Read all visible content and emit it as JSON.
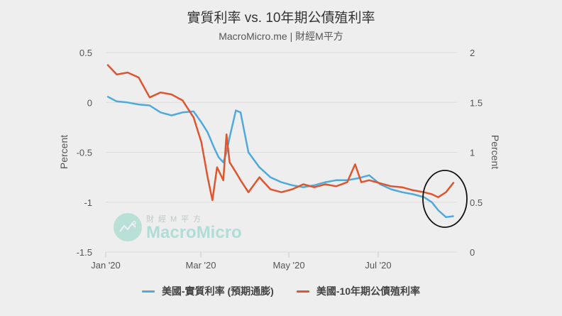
{
  "header": {
    "title": "實質利率 vs. 10年期公債殖利率",
    "subtitle": "MacroMicro.me | 財經M平方"
  },
  "watermark": {
    "top_text": "財經M平方",
    "main_text": "MacroMicro"
  },
  "legend": [
    {
      "label": "美國-實質利率 (預期通膨)",
      "color": "#4fa9db"
    },
    {
      "label": "美國-10年期公債殖利率",
      "color": "#e0552d"
    }
  ],
  "annotation": {
    "type": "ellipse",
    "description": "circle highlighting late-July divergence",
    "color": "#111111"
  },
  "chart_data": {
    "type": "line",
    "title": "實質利率 vs. 10年期公債殖利率",
    "subtitle": "MacroMicro.me | 財經M平方",
    "x_ticks": [
      "Jan '20",
      "Mar '20",
      "May '20",
      "Jul '20"
    ],
    "left_axis": {
      "label": "Percent",
      "ticks": [
        "0.5",
        "0",
        "-0.5",
        "-1",
        "-1.5"
      ],
      "range": [
        -1.5,
        0.5
      ]
    },
    "right_axis": {
      "label": "Percent",
      "ticks": [
        "2",
        "1.5",
        "1",
        "0.5",
        "0"
      ],
      "range": [
        0,
        2
      ]
    },
    "grid": true,
    "legend_position": "bottom",
    "series": [
      {
        "name": "美國-實質利率 (預期通膨)",
        "axis": "left",
        "color": "#4fa9db",
        "x": [
          "2020-01-02",
          "2020-01-08",
          "2020-01-15",
          "2020-01-22",
          "2020-01-29",
          "2020-02-05",
          "2020-02-12",
          "2020-02-19",
          "2020-02-26",
          "2020-03-02",
          "2020-03-06",
          "2020-03-10",
          "2020-03-13",
          "2020-03-16",
          "2020-03-18",
          "2020-03-20",
          "2020-03-24",
          "2020-03-27",
          "2020-04-01",
          "2020-04-08",
          "2020-04-15",
          "2020-04-22",
          "2020-04-29",
          "2020-05-06",
          "2020-05-13",
          "2020-05-20",
          "2020-05-27",
          "2020-06-03",
          "2020-06-10",
          "2020-06-17",
          "2020-06-24",
          "2020-07-01",
          "2020-07-08",
          "2020-07-15",
          "2020-07-22",
          "2020-07-27",
          "2020-07-31",
          "2020-08-05",
          "2020-08-10"
        ],
        "values": [
          0.06,
          0.01,
          0.0,
          -0.02,
          -0.03,
          -0.1,
          -0.13,
          -0.1,
          -0.09,
          -0.2,
          -0.3,
          -0.45,
          -0.55,
          -0.6,
          -0.5,
          -0.35,
          -0.08,
          -0.1,
          -0.5,
          -0.65,
          -0.75,
          -0.8,
          -0.83,
          -0.85,
          -0.83,
          -0.8,
          -0.78,
          -0.78,
          -0.76,
          -0.73,
          -0.82,
          -0.87,
          -0.9,
          -0.92,
          -0.95,
          -1.0,
          -1.08,
          -1.15,
          -1.14
        ]
      },
      {
        "name": "美國-10年期公債殖利率",
        "axis": "right",
        "color": "#e0552d",
        "x": [
          "2020-01-02",
          "2020-01-08",
          "2020-01-15",
          "2020-01-22",
          "2020-01-29",
          "2020-02-05",
          "2020-02-12",
          "2020-02-19",
          "2020-02-26",
          "2020-03-02",
          "2020-03-06",
          "2020-03-09",
          "2020-03-12",
          "2020-03-16",
          "2020-03-18",
          "2020-03-20",
          "2020-03-24",
          "2020-03-27",
          "2020-04-01",
          "2020-04-08",
          "2020-04-15",
          "2020-04-22",
          "2020-04-29",
          "2020-05-06",
          "2020-05-13",
          "2020-05-20",
          "2020-05-27",
          "2020-06-03",
          "2020-06-08",
          "2020-06-12",
          "2020-06-17",
          "2020-06-24",
          "2020-07-01",
          "2020-07-08",
          "2020-07-15",
          "2020-07-22",
          "2020-07-27",
          "2020-07-31",
          "2020-08-05",
          "2020-08-10"
        ],
        "values": [
          1.88,
          1.78,
          1.8,
          1.75,
          1.55,
          1.6,
          1.58,
          1.52,
          1.35,
          1.1,
          0.75,
          0.52,
          0.85,
          0.72,
          1.18,
          0.9,
          0.8,
          0.72,
          0.6,
          0.75,
          0.63,
          0.6,
          0.63,
          0.68,
          0.65,
          0.68,
          0.66,
          0.7,
          0.88,
          0.7,
          0.72,
          0.69,
          0.66,
          0.65,
          0.62,
          0.6,
          0.58,
          0.55,
          0.6,
          0.7
        ]
      }
    ]
  }
}
